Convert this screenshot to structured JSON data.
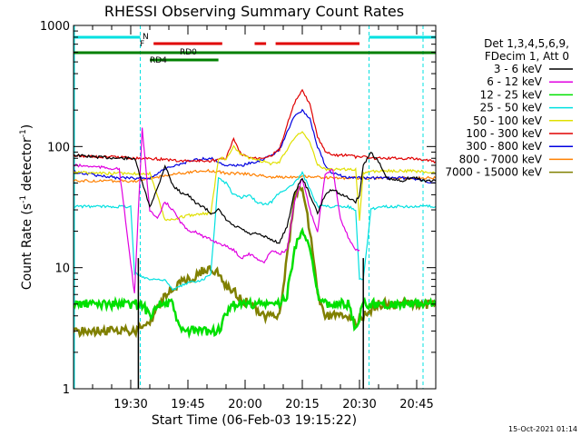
{
  "chart_data": {
    "type": "line",
    "title": "RHESSI Observing Summary Count Rates",
    "xlabel": "Start Time (06-Feb-03 19:15:22)",
    "ylabel_main": "Count Rate (s",
    "ylabel_sup1": "-1",
    "ylabel_mid": " detector",
    "ylabel_sup2": "-1",
    "ylabel_end": ")",
    "yscale": "log",
    "ylim": [
      1,
      1000
    ],
    "xlim_minutes": [
      0,
      95
    ],
    "y_ticks": [
      {
        "value": 1,
        "label": "1"
      },
      {
        "value": 10,
        "label": "10"
      },
      {
        "value": 100,
        "label": "100"
      },
      {
        "value": 1000,
        "label": "1000"
      }
    ],
    "x_ticks": [
      {
        "minute": 15,
        "label": "19:30"
      },
      {
        "minute": 30,
        "label": "19:45"
      },
      {
        "minute": 45,
        "label": "20:00"
      },
      {
        "minute": 60,
        "label": "20:15"
      },
      {
        "minute": 75,
        "label": "20:30"
      },
      {
        "minute": 90,
        "label": "20:45"
      }
    ],
    "legend_header": [
      "Det 1,3,4,5,6,9,",
      "FDecim 1, Att 0"
    ],
    "series": [
      {
        "name": "3 - 6 keV",
        "color": "#000000",
        "x": [
          0,
          6,
          12,
          16,
          18,
          20,
          22,
          24,
          26,
          28,
          30,
          32,
          34,
          36,
          38,
          40,
          42,
          44,
          46,
          48,
          50,
          52,
          54,
          56,
          58,
          60,
          62,
          64,
          66,
          68,
          70,
          72,
          74,
          75,
          76,
          78,
          80,
          82,
          84,
          86,
          88,
          90,
          92,
          95
        ],
        "y": [
          85,
          82,
          80,
          80,
          50,
          32,
          45,
          70,
          48,
          42,
          40,
          34,
          32,
          28,
          30,
          25,
          22,
          21,
          19,
          19,
          18,
          17,
          16,
          22,
          42,
          55,
          40,
          28,
          40,
          45,
          40,
          38,
          35,
          40,
          70,
          90,
          75,
          55,
          53,
          52,
          55,
          55,
          52,
          52
        ]
      },
      {
        "name": "6 - 12 keV",
        "color": "#e000e0",
        "x": [
          0,
          6,
          12,
          16,
          18,
          20,
          22,
          24,
          26,
          28,
          30,
          32,
          34,
          36,
          38,
          40,
          42,
          44,
          46,
          48,
          50,
          52,
          54,
          56,
          58,
          60,
          62,
          64,
          66,
          68,
          70,
          72,
          74,
          75
        ],
        "y": [
          70,
          68,
          65,
          6,
          140,
          30,
          25,
          35,
          30,
          24,
          20,
          20,
          18,
          17,
          16,
          15,
          14,
          12,
          13,
          12,
          11,
          14,
          13,
          14,
          35,
          55,
          30,
          20,
          60,
          65,
          25,
          18,
          14,
          14
        ]
      },
      {
        "name": "12 - 25 keV",
        "color": "#00e000",
        "x": [
          0,
          6,
          12,
          16,
          18,
          20,
          22,
          24,
          26,
          28,
          30,
          32,
          34,
          36,
          38,
          40,
          42,
          44,
          46,
          48,
          50,
          52,
          54,
          56,
          58,
          60,
          62,
          64,
          66,
          68,
          70,
          72,
          74,
          76,
          78,
          80,
          82,
          84,
          86,
          88,
          90,
          92,
          95
        ],
        "y": [
          5,
          5,
          5,
          5,
          5,
          4,
          5,
          5,
          5,
          3,
          3,
          3,
          3,
          3,
          3,
          4,
          5,
          5,
          5,
          5,
          5,
          5,
          5,
          6,
          14,
          22,
          14,
          6,
          5,
          5,
          5,
          5,
          3,
          5,
          5,
          5,
          5,
          5,
          5,
          5,
          5,
          5,
          5
        ]
      },
      {
        "name": "25 - 50 keV",
        "color": "#00e0e0",
        "x": [
          0,
          6,
          12,
          15,
          16,
          20,
          24,
          26,
          28,
          30,
          34,
          36,
          38,
          40,
          42,
          44,
          46,
          48,
          50,
          52,
          54,
          56,
          58,
          60,
          62,
          64,
          66,
          68,
          70,
          72,
          74,
          75,
          76,
          78,
          80,
          84,
          88,
          92,
          95
        ],
        "y": [
          32,
          32,
          32,
          32,
          9,
          8,
          8,
          6.5,
          7,
          7.5,
          8,
          9,
          55,
          50,
          40,
          38,
          40,
          35,
          33,
          35,
          42,
          45,
          50,
          60,
          45,
          32,
          32,
          32,
          32,
          32,
          30,
          8,
          8,
          30,
          32,
          32,
          32,
          32,
          32
        ]
      },
      {
        "name": "50 - 100 keV",
        "color": "#e0e000",
        "x": [
          0,
          6,
          12,
          16,
          20,
          24,
          26,
          28,
          30,
          34,
          36,
          38,
          40,
          42,
          44,
          46,
          48,
          50,
          52,
          54,
          56,
          58,
          60,
          62,
          64,
          66,
          68,
          70,
          72,
          74,
          75,
          76,
          78,
          80,
          84,
          88,
          92,
          95
        ],
        "y": [
          62,
          60,
          60,
          60,
          60,
          25,
          25,
          26,
          27,
          28,
          28,
          80,
          80,
          100,
          85,
          80,
          78,
          75,
          72,
          75,
          95,
          120,
          130,
          110,
          70,
          65,
          65,
          65,
          65,
          65,
          25,
          60,
          62,
          63,
          63,
          63,
          62,
          60
        ]
      },
      {
        "name": "100 - 300 keV",
        "color": "#e00000",
        "x": [
          0,
          6,
          12,
          16,
          20,
          24,
          28,
          32,
          36,
          38,
          40,
          42,
          44,
          46,
          48,
          50,
          52,
          54,
          56,
          58,
          60,
          62,
          64,
          66,
          68,
          70,
          72,
          74,
          76,
          78,
          80,
          84,
          88,
          92,
          95
        ],
        "y": [
          85,
          82,
          82,
          80,
          80,
          78,
          76,
          76,
          76,
          78,
          80,
          115,
          85,
          82,
          80,
          82,
          85,
          95,
          150,
          230,
          290,
          220,
          120,
          90,
          85,
          85,
          85,
          82,
          82,
          80,
          80,
          80,
          80,
          78,
          75
        ]
      },
      {
        "name": "300 - 800 keV",
        "color": "#0000e0",
        "x": [
          0,
          6,
          12,
          16,
          20,
          24,
          28,
          32,
          36,
          38,
          40,
          44,
          48,
          52,
          54,
          56,
          58,
          60,
          62,
          64,
          66,
          68,
          72,
          76,
          80,
          84,
          88,
          92,
          95
        ],
        "y": [
          62,
          58,
          55,
          55,
          55,
          65,
          72,
          78,
          80,
          75,
          70,
          70,
          75,
          85,
          95,
          130,
          180,
          200,
          170,
          100,
          70,
          60,
          55,
          55,
          55,
          55,
          55,
          52,
          50
        ]
      },
      {
        "name": "800 - 7000 keV",
        "color": "#ff8000",
        "x": [
          0,
          6,
          12,
          16,
          20,
          24,
          28,
          32,
          36,
          38,
          40,
          44,
          48,
          52,
          56,
          60,
          64,
          68,
          72,
          76,
          80,
          84,
          88,
          92,
          95
        ],
        "y": [
          52,
          52,
          52,
          52,
          54,
          58,
          60,
          62,
          63,
          62,
          60,
          60,
          58,
          56,
          56,
          57,
          56,
          55,
          55,
          55,
          55,
          55,
          55,
          55,
          55
        ]
      },
      {
        "name": "7000 - 15000 keV",
        "color": "#808000",
        "x": [
          0,
          6,
          12,
          15,
          16,
          20,
          24,
          28,
          30,
          32,
          34,
          36,
          38,
          40,
          42,
          44,
          46,
          48,
          50,
          52,
          54,
          56,
          58,
          60,
          62,
          64,
          66,
          68,
          70,
          72,
          74,
          76,
          78,
          80,
          84,
          88,
          92,
          95
        ],
        "y": [
          3,
          3,
          3,
          3,
          3,
          3.5,
          6,
          7.5,
          8,
          8.5,
          9.5,
          10,
          9,
          7,
          6.5,
          5.5,
          5,
          4.5,
          4,
          4,
          4,
          12,
          40,
          45,
          20,
          6,
          4,
          4,
          4,
          4,
          3.5,
          4,
          4.5,
          5,
          5,
          5,
          5,
          5
        ]
      }
    ],
    "status_bars": [
      {
        "label": "N",
        "color": "#00e0e0",
        "segments": [
          [
            0,
            17.5
          ],
          [
            77.5,
            95
          ]
        ]
      },
      {
        "label": "F",
        "color": "#e00000",
        "segments": [
          [
            21,
            39
          ],
          [
            47.5,
            50.5
          ],
          [
            53,
            75
          ]
        ]
      },
      {
        "label": "RD0",
        "color": "#008000",
        "segments": [
          [
            0,
            95
          ]
        ]
      },
      {
        "label": "RD4",
        "color": "#008000",
        "segments": [
          [
            20,
            38
          ]
        ]
      }
    ],
    "night_boundaries_minutes": [
      17.5,
      77.5
    ],
    "saa_markers_minutes": [
      17,
      76
    ]
  },
  "footer": {
    "timestamp": "15-Oct-2021 01:14"
  }
}
